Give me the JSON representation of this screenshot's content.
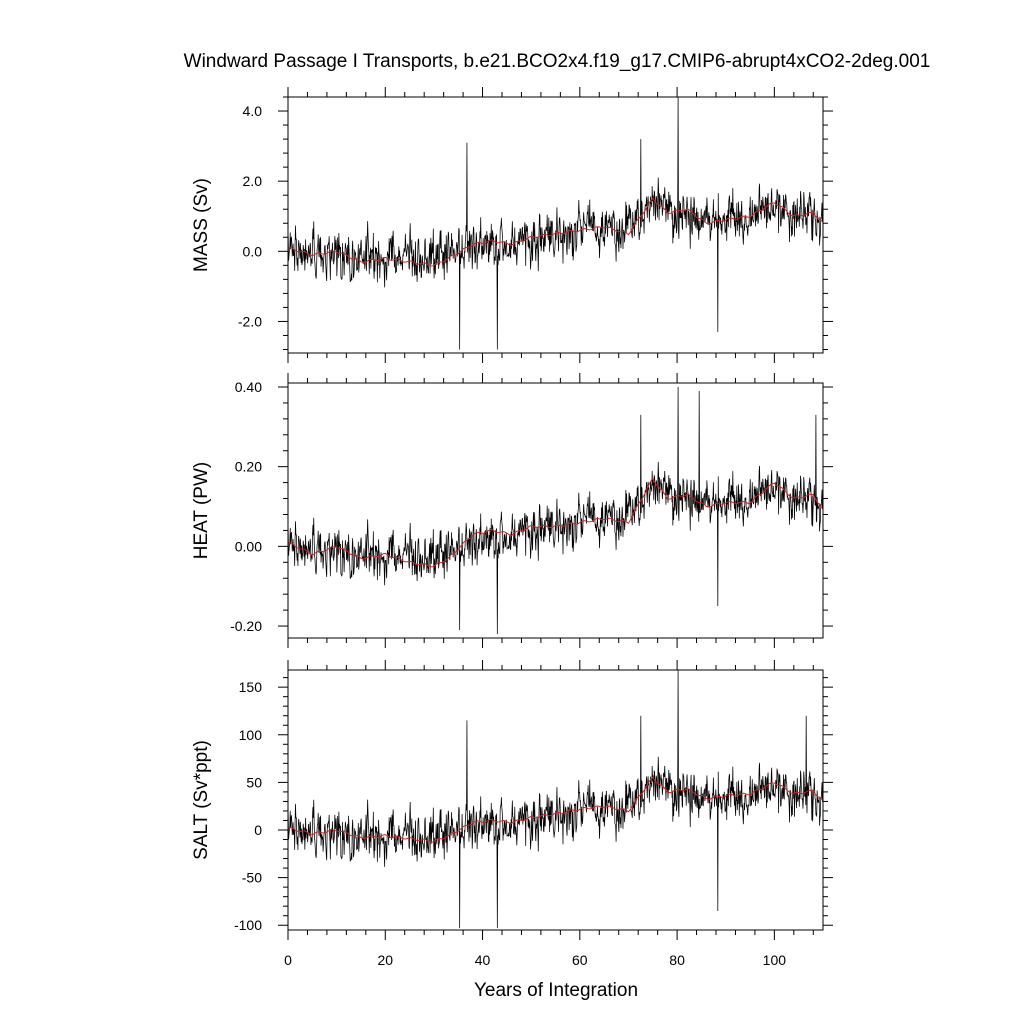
{
  "chart_data": {
    "type": "line",
    "title": "Windward Passage I Transports, b.e21.BCO2x4.f19_g17.CMIP6-abrupt4xCO2-2deg.001",
    "xlabel": "Years of Integration",
    "xlim": [
      0,
      110
    ],
    "xticks": [
      0,
      20,
      40,
      60,
      80,
      100
    ],
    "xtick_labels": [
      "0",
      "20",
      "40",
      "60",
      "80",
      "100"
    ],
    "raw_series_color": "#000000",
    "smooth_series_color": "#d62020",
    "panels": [
      {
        "ylabel": "MASS (Sv)",
        "ylim": [
          -2.9,
          4.4
        ],
        "yticks": [
          -2.0,
          0.0,
          2.0,
          4.0
        ],
        "ytick_labels": [
          "-2.0",
          "0.0",
          "2.0",
          "4.0"
        ],
        "trend": [
          [
            0,
            0.0
          ],
          [
            30,
            -0.2
          ],
          [
            35,
            0.1
          ],
          [
            50,
            0.3
          ],
          [
            60,
            0.6
          ],
          [
            70,
            0.7
          ],
          [
            75,
            1.4
          ],
          [
            80,
            1.0
          ],
          [
            90,
            0.9
          ],
          [
            100,
            1.2
          ],
          [
            110,
            0.9
          ]
        ],
        "noise_amplitude": 0.75,
        "spikes": [
          [
            35.3,
            -2.8
          ],
          [
            43.0,
            -2.8
          ],
          [
            80.2,
            4.4
          ],
          [
            88.4,
            -2.3
          ],
          [
            36.8,
            3.1
          ],
          [
            72.5,
            3.2
          ]
        ],
        "smoothed": [
          [
            0,
            0.1
          ],
          [
            5,
            -0.1
          ],
          [
            10,
            0.0
          ],
          [
            15,
            -0.3
          ],
          [
            20,
            -0.2
          ],
          [
            25,
            -0.3
          ],
          [
            30,
            -0.4
          ],
          [
            33,
            -0.2
          ],
          [
            38,
            0.2
          ],
          [
            42,
            0.3
          ],
          [
            46,
            0.2
          ],
          [
            50,
            0.4
          ],
          [
            55,
            0.5
          ],
          [
            60,
            0.6
          ],
          [
            65,
            0.7
          ],
          [
            70,
            0.5
          ],
          [
            75,
            1.5
          ],
          [
            78,
            1.1
          ],
          [
            82,
            1.2
          ],
          [
            86,
            0.8
          ],
          [
            90,
            0.9
          ],
          [
            95,
            1.0
          ],
          [
            100,
            1.4
          ],
          [
            104,
            1.0
          ],
          [
            108,
            1.1
          ],
          [
            110,
            0.8
          ]
        ]
      },
      {
        "ylabel": "HEAT (PW)",
        "ylim": [
          -0.23,
          0.41
        ],
        "yticks": [
          -0.2,
          0.0,
          0.2,
          0.4
        ],
        "ytick_labels": [
          "-0.20",
          "0.00",
          "0.20",
          "0.40"
        ],
        "trend": [
          [
            0,
            0.0
          ],
          [
            30,
            -0.03
          ],
          [
            35,
            0.0
          ],
          [
            50,
            0.04
          ],
          [
            60,
            0.06
          ],
          [
            70,
            0.08
          ],
          [
            75,
            0.15
          ],
          [
            80,
            0.12
          ],
          [
            90,
            0.11
          ],
          [
            100,
            0.14
          ],
          [
            110,
            0.1
          ]
        ],
        "noise_amplitude": 0.065,
        "spikes": [
          [
            35.3,
            -0.21
          ],
          [
            43.0,
            -0.22
          ],
          [
            80.2,
            0.4
          ],
          [
            84.5,
            0.39
          ],
          [
            88.4,
            -0.15
          ],
          [
            72.5,
            0.33
          ],
          [
            108.5,
            0.33
          ]
        ],
        "smoothed": [
          [
            0,
            0.01
          ],
          [
            5,
            -0.02
          ],
          [
            10,
            0.0
          ],
          [
            15,
            -0.03
          ],
          [
            20,
            -0.02
          ],
          [
            25,
            -0.04
          ],
          [
            30,
            -0.05
          ],
          [
            33,
            -0.03
          ],
          [
            38,
            0.03
          ],
          [
            42,
            0.04
          ],
          [
            46,
            0.03
          ],
          [
            50,
            0.05
          ],
          [
            55,
            0.05
          ],
          [
            60,
            0.06
          ],
          [
            65,
            0.07
          ],
          [
            70,
            0.06
          ],
          [
            75,
            0.17
          ],
          [
            78,
            0.12
          ],
          [
            82,
            0.13
          ],
          [
            86,
            0.1
          ],
          [
            90,
            0.11
          ],
          [
            95,
            0.11
          ],
          [
            100,
            0.16
          ],
          [
            104,
            0.12
          ],
          [
            108,
            0.13
          ],
          [
            110,
            0.09
          ]
        ]
      },
      {
        "ylabel": "SALT (Sv*ppt)",
        "ylim": [
          -105,
          168
        ],
        "yticks": [
          -100,
          -50,
          0,
          50,
          100,
          150
        ],
        "ytick_labels": [
          "-100",
          "-50",
          "0",
          "50",
          "100",
          "150"
        ],
        "trend": [
          [
            0,
            0
          ],
          [
            30,
            -8
          ],
          [
            35,
            3
          ],
          [
            50,
            10
          ],
          [
            60,
            20
          ],
          [
            70,
            25
          ],
          [
            75,
            50
          ],
          [
            80,
            38
          ],
          [
            90,
            33
          ],
          [
            100,
            43
          ],
          [
            110,
            32
          ]
        ],
        "noise_amplitude": 28,
        "spikes": [
          [
            35.3,
            -103
          ],
          [
            43.0,
            -103
          ],
          [
            80.2,
            168
          ],
          [
            88.4,
            -85
          ],
          [
            36.8,
            115
          ],
          [
            72.5,
            120
          ],
          [
            106.5,
            120
          ]
        ],
        "smoothed": [
          [
            0,
            2
          ],
          [
            5,
            -4
          ],
          [
            10,
            0
          ],
          [
            15,
            -8
          ],
          [
            20,
            -6
          ],
          [
            25,
            -9
          ],
          [
            30,
            -12
          ],
          [
            33,
            -6
          ],
          [
            38,
            8
          ],
          [
            42,
            10
          ],
          [
            46,
            8
          ],
          [
            50,
            13
          ],
          [
            55,
            17
          ],
          [
            60,
            22
          ],
          [
            65,
            25
          ],
          [
            70,
            20
          ],
          [
            75,
            55
          ],
          [
            78,
            40
          ],
          [
            82,
            43
          ],
          [
            86,
            33
          ],
          [
            90,
            36
          ],
          [
            95,
            38
          ],
          [
            100,
            50
          ],
          [
            104,
            38
          ],
          [
            108,
            41
          ],
          [
            110,
            30
          ]
        ]
      }
    ]
  }
}
